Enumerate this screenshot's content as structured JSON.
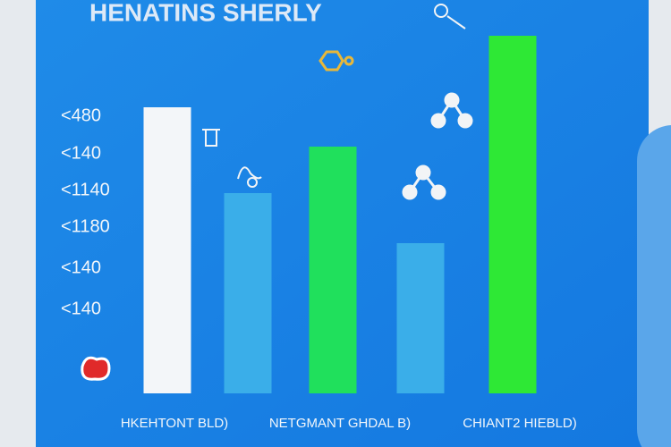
{
  "chart_data": {
    "type": "bar",
    "title": "HENATINS SHERLY",
    "categories": [
      "HKEHTONT BLD)",
      null,
      "NETGMANT GHDAL B)",
      null,
      "CHIANT2 HIEBLD)"
    ],
    "values": [
      8.0,
      5.6,
      6.9,
      4.2,
      10.0
    ],
    "colors": [
      "#f3f6f9",
      "#3aaee9",
      "#20e05c",
      "#3aaee9",
      "#2ee835"
    ],
    "ylim": [
      0,
      10
    ],
    "yticks": [
      {
        "value": 7.75,
        "label": "<480"
      },
      {
        "value": 6.7,
        "label": "<140"
      },
      {
        "value": 5.675,
        "label": "<1140"
      },
      {
        "value": 4.65,
        "label": "<1180"
      },
      {
        "value": 3.5,
        "label": "<140"
      },
      {
        "value": 2.35,
        "label": "<140"
      }
    ],
    "grid": false
  }
}
